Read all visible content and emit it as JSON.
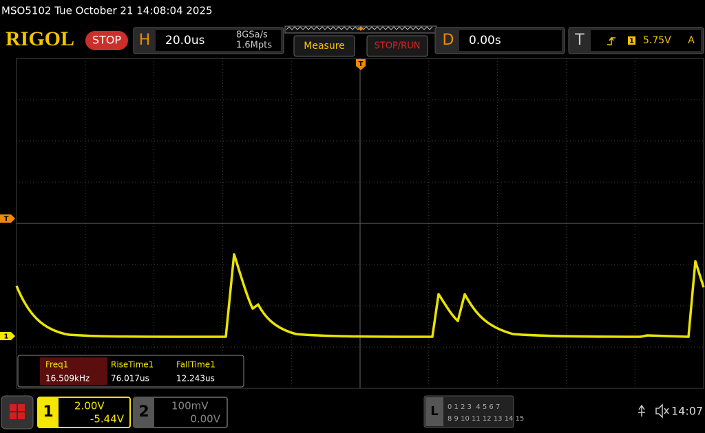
{
  "status_bar": {
    "title": "MSO5102  Tue October 21 14:08:04 2025"
  },
  "toolbar": {
    "brand": "RIGOL",
    "run_state": "STOP",
    "horizontal": {
      "label": "H",
      "timebase": "20.0us",
      "sample_rate": "8GSa/s",
      "memory_depth": "1.6Mpts"
    },
    "measure_button": "Measure",
    "stop_run_button": "STOP/RUN",
    "delay": {
      "label": "D",
      "value": "0.00s"
    },
    "trigger": {
      "label": "T",
      "source": "1",
      "level": "5.75V",
      "mode": "A"
    }
  },
  "screen": {
    "trigger_position_marker": "T",
    "trigger_level_marker": "T",
    "channel1_marker": "1"
  },
  "measurements": [
    {
      "name": "Freq1",
      "value": "16.509kHz"
    },
    {
      "name": "RiseTime1",
      "value": "76.017us"
    },
    {
      "name": "FallTime1",
      "value": "12.243us"
    }
  ],
  "channels": [
    {
      "number": "1",
      "scale": "2.00V",
      "offset": "-5.44V"
    },
    {
      "number": "2",
      "scale": "100mV",
      "offset": "0.00V"
    }
  ],
  "logic": {
    "label": "L",
    "row1": "0 1 2 3  4 5 6 7",
    "row2": "8 9 10 11 12 13 14 15"
  },
  "clock": "14:07"
}
